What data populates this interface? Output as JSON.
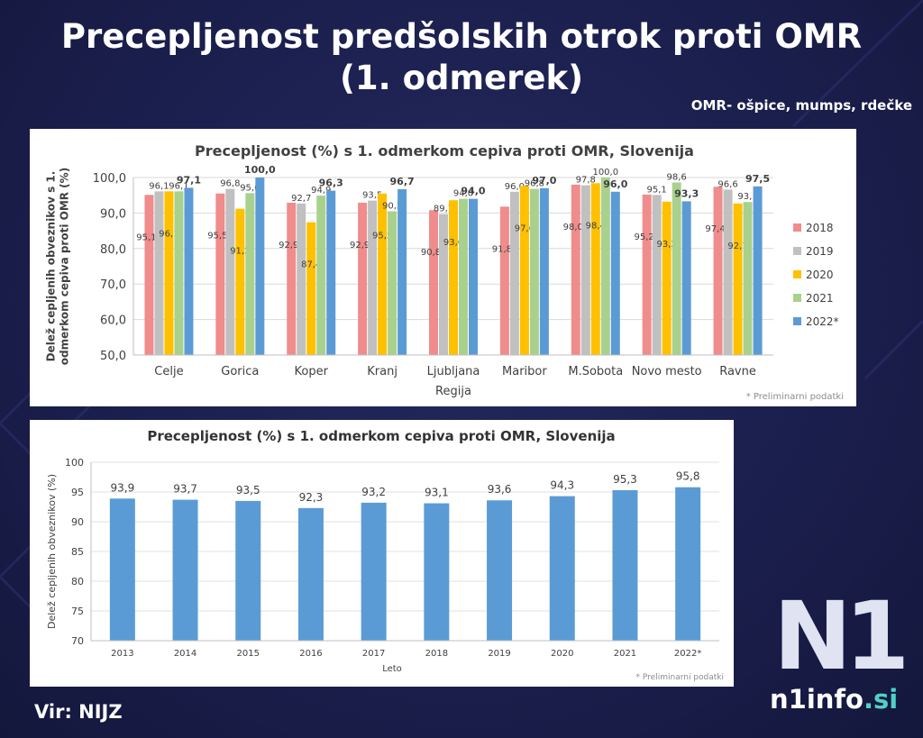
{
  "page": {
    "title_line1": "Precepljenost predšolskih otrok proti OMR",
    "title_line2": "(1. odmerek)",
    "subtitle": "OMR- ošpice, mumps, rdečke",
    "source": "Vir: NIJZ",
    "logo_mark": "N1",
    "logo_name": "n1info",
    "logo_tld": ".si"
  },
  "colors": {
    "2018": "#f08c8c",
    "2019": "#c0c0c0",
    "2020": "#ffc000",
    "2021": "#a9d18e",
    "2022": "#5b9bd5",
    "single": "#5b9bd5",
    "background": "#1b1f4d"
  },
  "chart_data": [
    {
      "type": "bar",
      "title": "Precepljenost (%) s 1. odmerkom cepiva proti OMR, Slovenija",
      "xlabel": "Regija",
      "ylabel": "Delež cepljenih obveznikov s 1. odmerkom cepiva proti OMR (%)",
      "ylim": [
        50,
        100
      ],
      "yticks": [
        "50,0",
        "60,0",
        "70,0",
        "80,0",
        "90,0",
        "100,0"
      ],
      "categories": [
        "Celje",
        "Gorica",
        "Koper",
        "Kranj",
        "Ljubljana",
        "Maribor",
        "M.Sobota",
        "Novo mesto",
        "Ravne"
      ],
      "series": [
        {
          "name": "2018",
          "values": [
            95.1,
            95.5,
            92.9,
            92.9,
            90.8,
            91.8,
            98.0,
            95.2,
            97.4
          ]
        },
        {
          "name": "2019",
          "values": [
            96.1,
            96.8,
            92.7,
            93.5,
            89.7,
            96.0,
            97.8,
            95.1,
            96.6
          ]
        },
        {
          "name": "2020",
          "values": [
            96.1,
            91.2,
            87.4,
            95.5,
            93.6,
            97.6,
            98.4,
            93.2,
            92.7
          ]
        },
        {
          "name": "2021",
          "values": [
            96.1,
            95.6,
            94.9,
            90.5,
            94.0,
            96.8,
            100.0,
            98.6,
            93.1
          ]
        },
        {
          "name": "2022*",
          "values": [
            97.1,
            100.0,
            96.3,
            96.7,
            94.0,
            97.0,
            96.0,
            93.3,
            97.5
          ]
        }
      ],
      "note": "* Preliminarni podatki",
      "legend": "right"
    },
    {
      "type": "bar",
      "title": "Precepljenost (%) s 1. odmerkom cepiva proti OMR, Slovenija",
      "xlabel": "Leto",
      "ylabel": "Delež cepljenih obveznikov (%)",
      "ylim": [
        70,
        100
      ],
      "yticks": [
        "70",
        "75",
        "80",
        "85",
        "90",
        "95",
        "100"
      ],
      "categories": [
        "2013",
        "2014",
        "2015",
        "2016",
        "2017",
        "2018",
        "2019",
        "2020",
        "2021",
        "2022*"
      ],
      "values": [
        93.9,
        93.7,
        93.5,
        92.3,
        93.2,
        93.1,
        93.6,
        94.3,
        95.3,
        95.8
      ],
      "labels": [
        "93,9",
        "93,7",
        "93,5",
        "92,3",
        "93,2",
        "93,1",
        "93,6",
        "94,3",
        "95,3",
        "95,8"
      ],
      "note": "* Preliminarni podatki"
    }
  ]
}
